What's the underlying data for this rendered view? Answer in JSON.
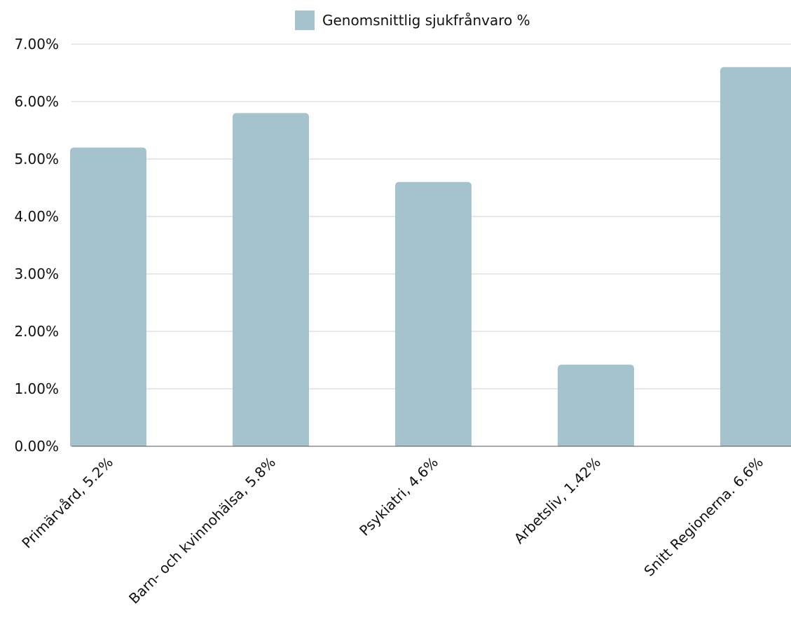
{
  "chart_data": {
    "type": "bar",
    "categories": [
      "Primärvård, 5.2%",
      "Barn- och kvinnohälsa, 5.8%",
      "Psykiatri, 4.6%",
      "Arbetsliv, 1.42%",
      "Snitt Regionerna. 6.6%"
    ],
    "series": [
      {
        "name": "Genomsnittlig sjukfrånvaro %",
        "values": [
          0.052,
          0.058,
          0.046,
          0.0142,
          0.066
        ],
        "color": "#a5c3cd"
      }
    ],
    "ylim": [
      0,
      0.07
    ],
    "yticks": [
      {
        "value": 0,
        "label": "0.00%"
      },
      {
        "value": 0.01,
        "label": "1.00%"
      },
      {
        "value": 0.02,
        "label": "2.00%"
      },
      {
        "value": 0.03,
        "label": "3.00%"
      },
      {
        "value": 0.04,
        "label": "4.00%"
      },
      {
        "value": 0.05,
        "label": "5.00%"
      },
      {
        "value": 0.06,
        "label": "6.00%"
      },
      {
        "value": 0.07,
        "label": "7.00%"
      }
    ],
    "legend_position": "top-center",
    "grid": true,
    "colors": {
      "bar": "#a5c3cd",
      "grid": "#d0d0d0",
      "axis": "#555555",
      "text": "#111111"
    }
  }
}
